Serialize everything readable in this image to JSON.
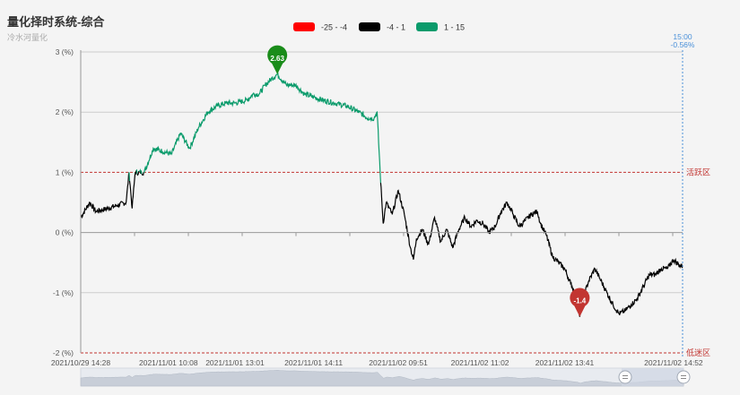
{
  "title": "量化择时系统-综合",
  "subtitle": "冷水河量化",
  "legend": [
    {
      "label": "-25 - -4",
      "color": "#ff0000"
    },
    {
      "label": "-4 - 1",
      "color": "#000000"
    },
    {
      "label": "1 - 15",
      "color": "#0a9b6b"
    }
  ],
  "colors": {
    "green_line": "#0a9b6b",
    "black_line": "#000000",
    "zone_line": "#c23531",
    "max_pin": "#1a8c1a",
    "min_pin": "#c23531",
    "cursor": "#4a90d9",
    "grid": "#cccccc"
  },
  "cursor": {
    "time": "15:00",
    "value": "-0.56%"
  },
  "chart_data": {
    "type": "line",
    "title": "量化择时系统-综合",
    "ylabel": "",
    "xlabel": "",
    "ylim": [
      -2,
      3
    ],
    "y_ticks": [
      "3 (%)",
      "2 (%)",
      "1 (%)",
      "0 (%)",
      "-1 (%)",
      "-2 (%)"
    ],
    "y_tick_values": [
      3,
      2,
      1,
      0,
      -1,
      -2
    ],
    "x_tick_labels": [
      "2021/10/29 14:28",
      "2021/11/01 10:08",
      "2021/11/01 13:01",
      "2021/11/01 14:11",
      "2021/11/02 09:51",
      "2021/11/02 11:02",
      "2021/11/02 13:41",
      "2021/11/02 14:52"
    ],
    "x_ticks_index": [
      0,
      29,
      51,
      77,
      105,
      132,
      160,
      196
    ],
    "grid": true,
    "legend_position": "top-center",
    "x_count": 200,
    "visual_map": [
      {
        "range": "-25 - -4",
        "color": "#ff0000"
      },
      {
        "range": "-4 - 1",
        "color": "#000000"
      },
      {
        "range": "1 - 15",
        "color": "#0a9b6b"
      }
    ],
    "mark_lines": [
      {
        "value": 1,
        "label": "活跃区"
      },
      {
        "value": -2,
        "label": "低迷区"
      }
    ],
    "mark_points": [
      {
        "label": "2.63",
        "index": 65,
        "value": 2.63,
        "type": "max"
      },
      {
        "label": "-1.4",
        "index": 165,
        "value": -1.4,
        "type": "min"
      }
    ],
    "anchors": [
      [
        0,
        0.25
      ],
      [
        3,
        0.5
      ],
      [
        5,
        0.35
      ],
      [
        9,
        0.4
      ],
      [
        12,
        0.45
      ],
      [
        15,
        0.5
      ],
      [
        16,
        1.0
      ],
      [
        17,
        0.4
      ],
      [
        18,
        1.0
      ],
      [
        21,
        1.0
      ],
      [
        24,
        1.4
      ],
      [
        27,
        1.35
      ],
      [
        30,
        1.3
      ],
      [
        33,
        1.65
      ],
      [
        36,
        1.4
      ],
      [
        39,
        1.75
      ],
      [
        42,
        2.0
      ],
      [
        45,
        2.1
      ],
      [
        48,
        2.15
      ],
      [
        51,
        2.15
      ],
      [
        55,
        2.2
      ],
      [
        57,
        2.3
      ],
      [
        59,
        2.3
      ],
      [
        61,
        2.45
      ],
      [
        63,
        2.55
      ],
      [
        65,
        2.63
      ],
      [
        68,
        2.45
      ],
      [
        71,
        2.45
      ],
      [
        74,
        2.3
      ],
      [
        77,
        2.25
      ],
      [
        80,
        2.2
      ],
      [
        84,
        2.15
      ],
      [
        88,
        2.1
      ],
      [
        92,
        2.0
      ],
      [
        95,
        1.9
      ],
      [
        97,
        1.9
      ],
      [
        98,
        2.0
      ],
      [
        99,
        1.0
      ],
      [
        100,
        0.15
      ],
      [
        101,
        0.5
      ],
      [
        103,
        0.3
      ],
      [
        105,
        0.7
      ],
      [
        107,
        0.3
      ],
      [
        109,
        -0.25
      ],
      [
        110,
        -0.45
      ],
      [
        111,
        -0.1
      ],
      [
        113,
        0.05
      ],
      [
        115,
        -0.2
      ],
      [
        117,
        0.25
      ],
      [
        119,
        -0.15
      ],
      [
        121,
        0.05
      ],
      [
        123,
        -0.25
      ],
      [
        125,
        0.05
      ],
      [
        127,
        0.25
      ],
      [
        129,
        0.1
      ],
      [
        131,
        0.2
      ],
      [
        133,
        0.15
      ],
      [
        135,
        0.0
      ],
      [
        137,
        0.1
      ],
      [
        139,
        0.35
      ],
      [
        141,
        0.5
      ],
      [
        143,
        0.3
      ],
      [
        145,
        0.1
      ],
      [
        147,
        0.2
      ],
      [
        149,
        0.3
      ],
      [
        151,
        0.35
      ],
      [
        152,
        0.15
      ],
      [
        154,
        -0.05
      ],
      [
        156,
        -0.4
      ],
      [
        158,
        -0.5
      ],
      [
        160,
        -0.6
      ],
      [
        162,
        -0.85
      ],
      [
        164,
        -1.05
      ],
      [
        165,
        -1.4
      ],
      [
        166,
        -1.1
      ],
      [
        168,
        -0.8
      ],
      [
        170,
        -0.6
      ],
      [
        172,
        -0.8
      ],
      [
        174,
        -1.0
      ],
      [
        176,
        -1.2
      ],
      [
        178,
        -1.35
      ],
      [
        180,
        -1.3
      ],
      [
        182,
        -1.2
      ],
      [
        184,
        -1.1
      ],
      [
        186,
        -0.9
      ],
      [
        188,
        -0.7
      ],
      [
        190,
        -0.7
      ],
      [
        192,
        -0.6
      ],
      [
        194,
        -0.6
      ],
      [
        196,
        -0.45
      ],
      [
        198,
        -0.55
      ],
      [
        199,
        -0.56
      ]
    ]
  }
}
